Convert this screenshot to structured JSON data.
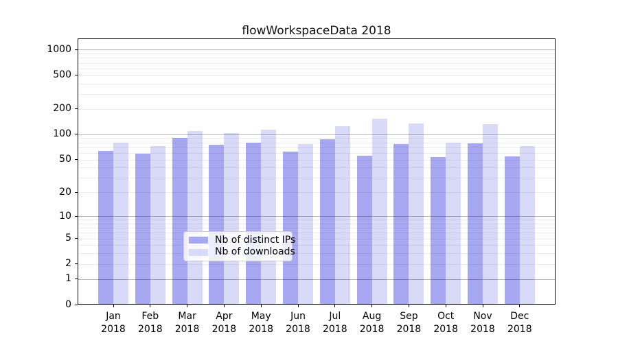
{
  "chart_data": {
    "type": "bar",
    "title": "flowWorkspaceData 2018",
    "categories": [
      "Jan",
      "Feb",
      "Mar",
      "Apr",
      "May",
      "Jun",
      "Jul",
      "Aug",
      "Sep",
      "Oct",
      "Nov",
      "Dec"
    ],
    "x_year_label": "2018",
    "series": [
      {
        "name": "Nb of distinct IPs",
        "color": "#a8a8f2",
        "values": [
          63,
          59,
          91,
          75,
          80,
          62,
          88,
          56,
          76,
          53,
          78,
          54
        ]
      },
      {
        "name": "Nb of downloads",
        "color": "#d9d9f8",
        "values": [
          80,
          73,
          110,
          103,
          113,
          76,
          124,
          152,
          134,
          79,
          133,
          73
        ]
      }
    ],
    "yscale": "log1p",
    "ylim": [
      0,
      1355
    ],
    "ytick_labels": [
      "0",
      "1",
      "2",
      "5",
      "10",
      "20",
      "50",
      "100",
      "200",
      "500",
      "1000"
    ],
    "ytick_values": [
      0,
      1,
      2,
      5,
      10,
      20,
      50,
      100,
      200,
      500,
      1000
    ],
    "grid": {
      "major_values": [
        1,
        10,
        100,
        1000
      ],
      "minor_values": [
        2,
        3,
        4,
        5,
        6,
        7,
        8,
        9,
        20,
        30,
        40,
        50,
        60,
        70,
        80,
        90,
        200,
        300,
        400,
        500,
        600,
        700,
        800,
        900
      ],
      "major_color": "rgba(0,0,0,0.28)",
      "minor_color": "rgba(0,0,0,0.08)"
    },
    "legend_position": "lower center inside",
    "background": "#ffffff",
    "spine_color": "#000000"
  }
}
